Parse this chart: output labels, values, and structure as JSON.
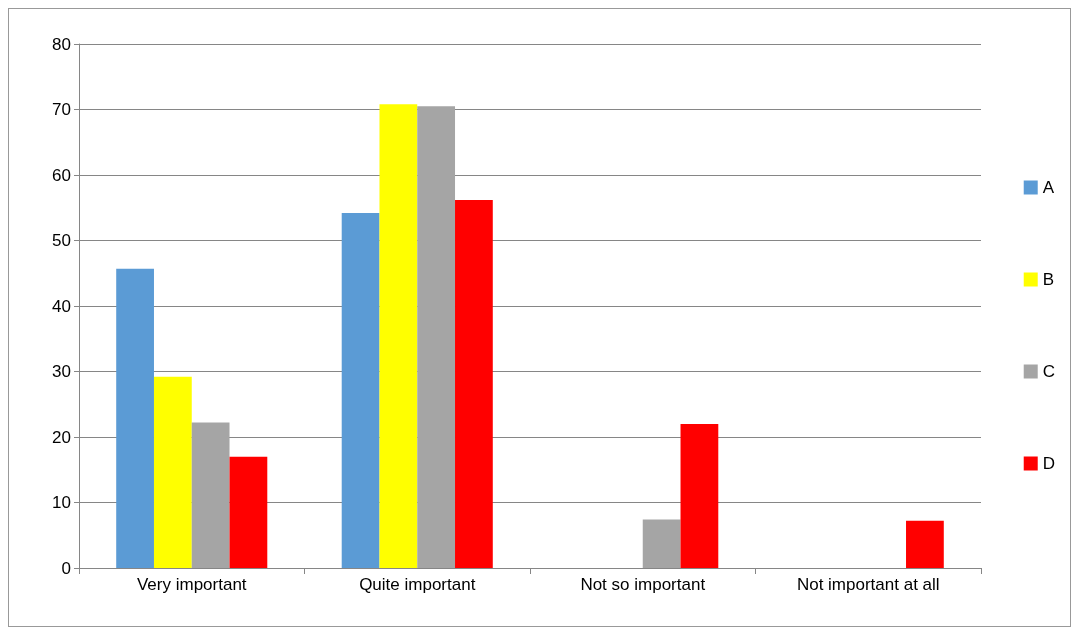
{
  "chart_data": {
    "type": "bar",
    "categories": [
      "Very important",
      "Quite important",
      "Not so important",
      "Not important at all"
    ],
    "series": [
      {
        "name": "A",
        "color": "#5b9bd5",
        "values": [
          45.7,
          54.2,
          0,
          0
        ]
      },
      {
        "name": "B",
        "color": "#ffff00",
        "values": [
          29.2,
          70.8,
          0,
          0
        ]
      },
      {
        "name": "C",
        "color": "#a5a5a5",
        "values": [
          22.2,
          70.5,
          7.4,
          0
        ]
      },
      {
        "name": "D",
        "color": "#ff0000",
        "values": [
          17,
          56.2,
          22,
          7.2
        ]
      }
    ],
    "ylim": [
      0,
      80
    ],
    "yticks": [
      0,
      10,
      20,
      30,
      40,
      50,
      60,
      70,
      80
    ],
    "grid": "y",
    "legend": "right"
  }
}
